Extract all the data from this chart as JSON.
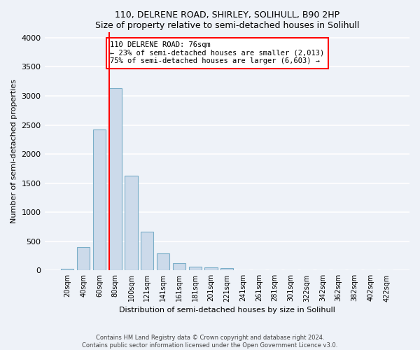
{
  "title": "110, DELRENE ROAD, SHIRLEY, SOLIHULL, B90 2HP",
  "subtitle": "Size of property relative to semi-detached houses in Solihull",
  "xlabel": "Distribution of semi-detached houses by size in Solihull",
  "ylabel": "Number of semi-detached properties",
  "categories": [
    "20sqm",
    "40sqm",
    "60sqm",
    "80sqm",
    "100sqm",
    "121sqm",
    "141sqm",
    "161sqm",
    "181sqm",
    "201sqm",
    "221sqm",
    "241sqm",
    "261sqm",
    "281sqm",
    "301sqm",
    "322sqm",
    "342sqm",
    "362sqm",
    "382sqm",
    "402sqm",
    "422sqm"
  ],
  "values": [
    30,
    400,
    2420,
    3130,
    1630,
    670,
    290,
    125,
    65,
    50,
    35,
    0,
    0,
    0,
    0,
    0,
    0,
    0,
    0,
    0,
    0
  ],
  "bar_color": "#ccdaea",
  "bar_edge_color": "#7aaec8",
  "annotation_box_color": "white",
  "annotation_box_edge": "red",
  "line_color": "red",
  "property_label": "110 DELRENE ROAD: 76sqm",
  "pct_smaller": 23,
  "count_smaller": 2013,
  "pct_larger": 75,
  "count_larger": 6603,
  "ylim": [
    0,
    4100
  ],
  "yticks": [
    0,
    500,
    1000,
    1500,
    2000,
    2500,
    3000,
    3500,
    4000
  ],
  "footnote1": "Contains HM Land Registry data © Crown copyright and database right 2024.",
  "footnote2": "Contains public sector information licensed under the Open Government Licence v3.0.",
  "bg_color": "#eef2f8",
  "grid_color": "#ffffff"
}
